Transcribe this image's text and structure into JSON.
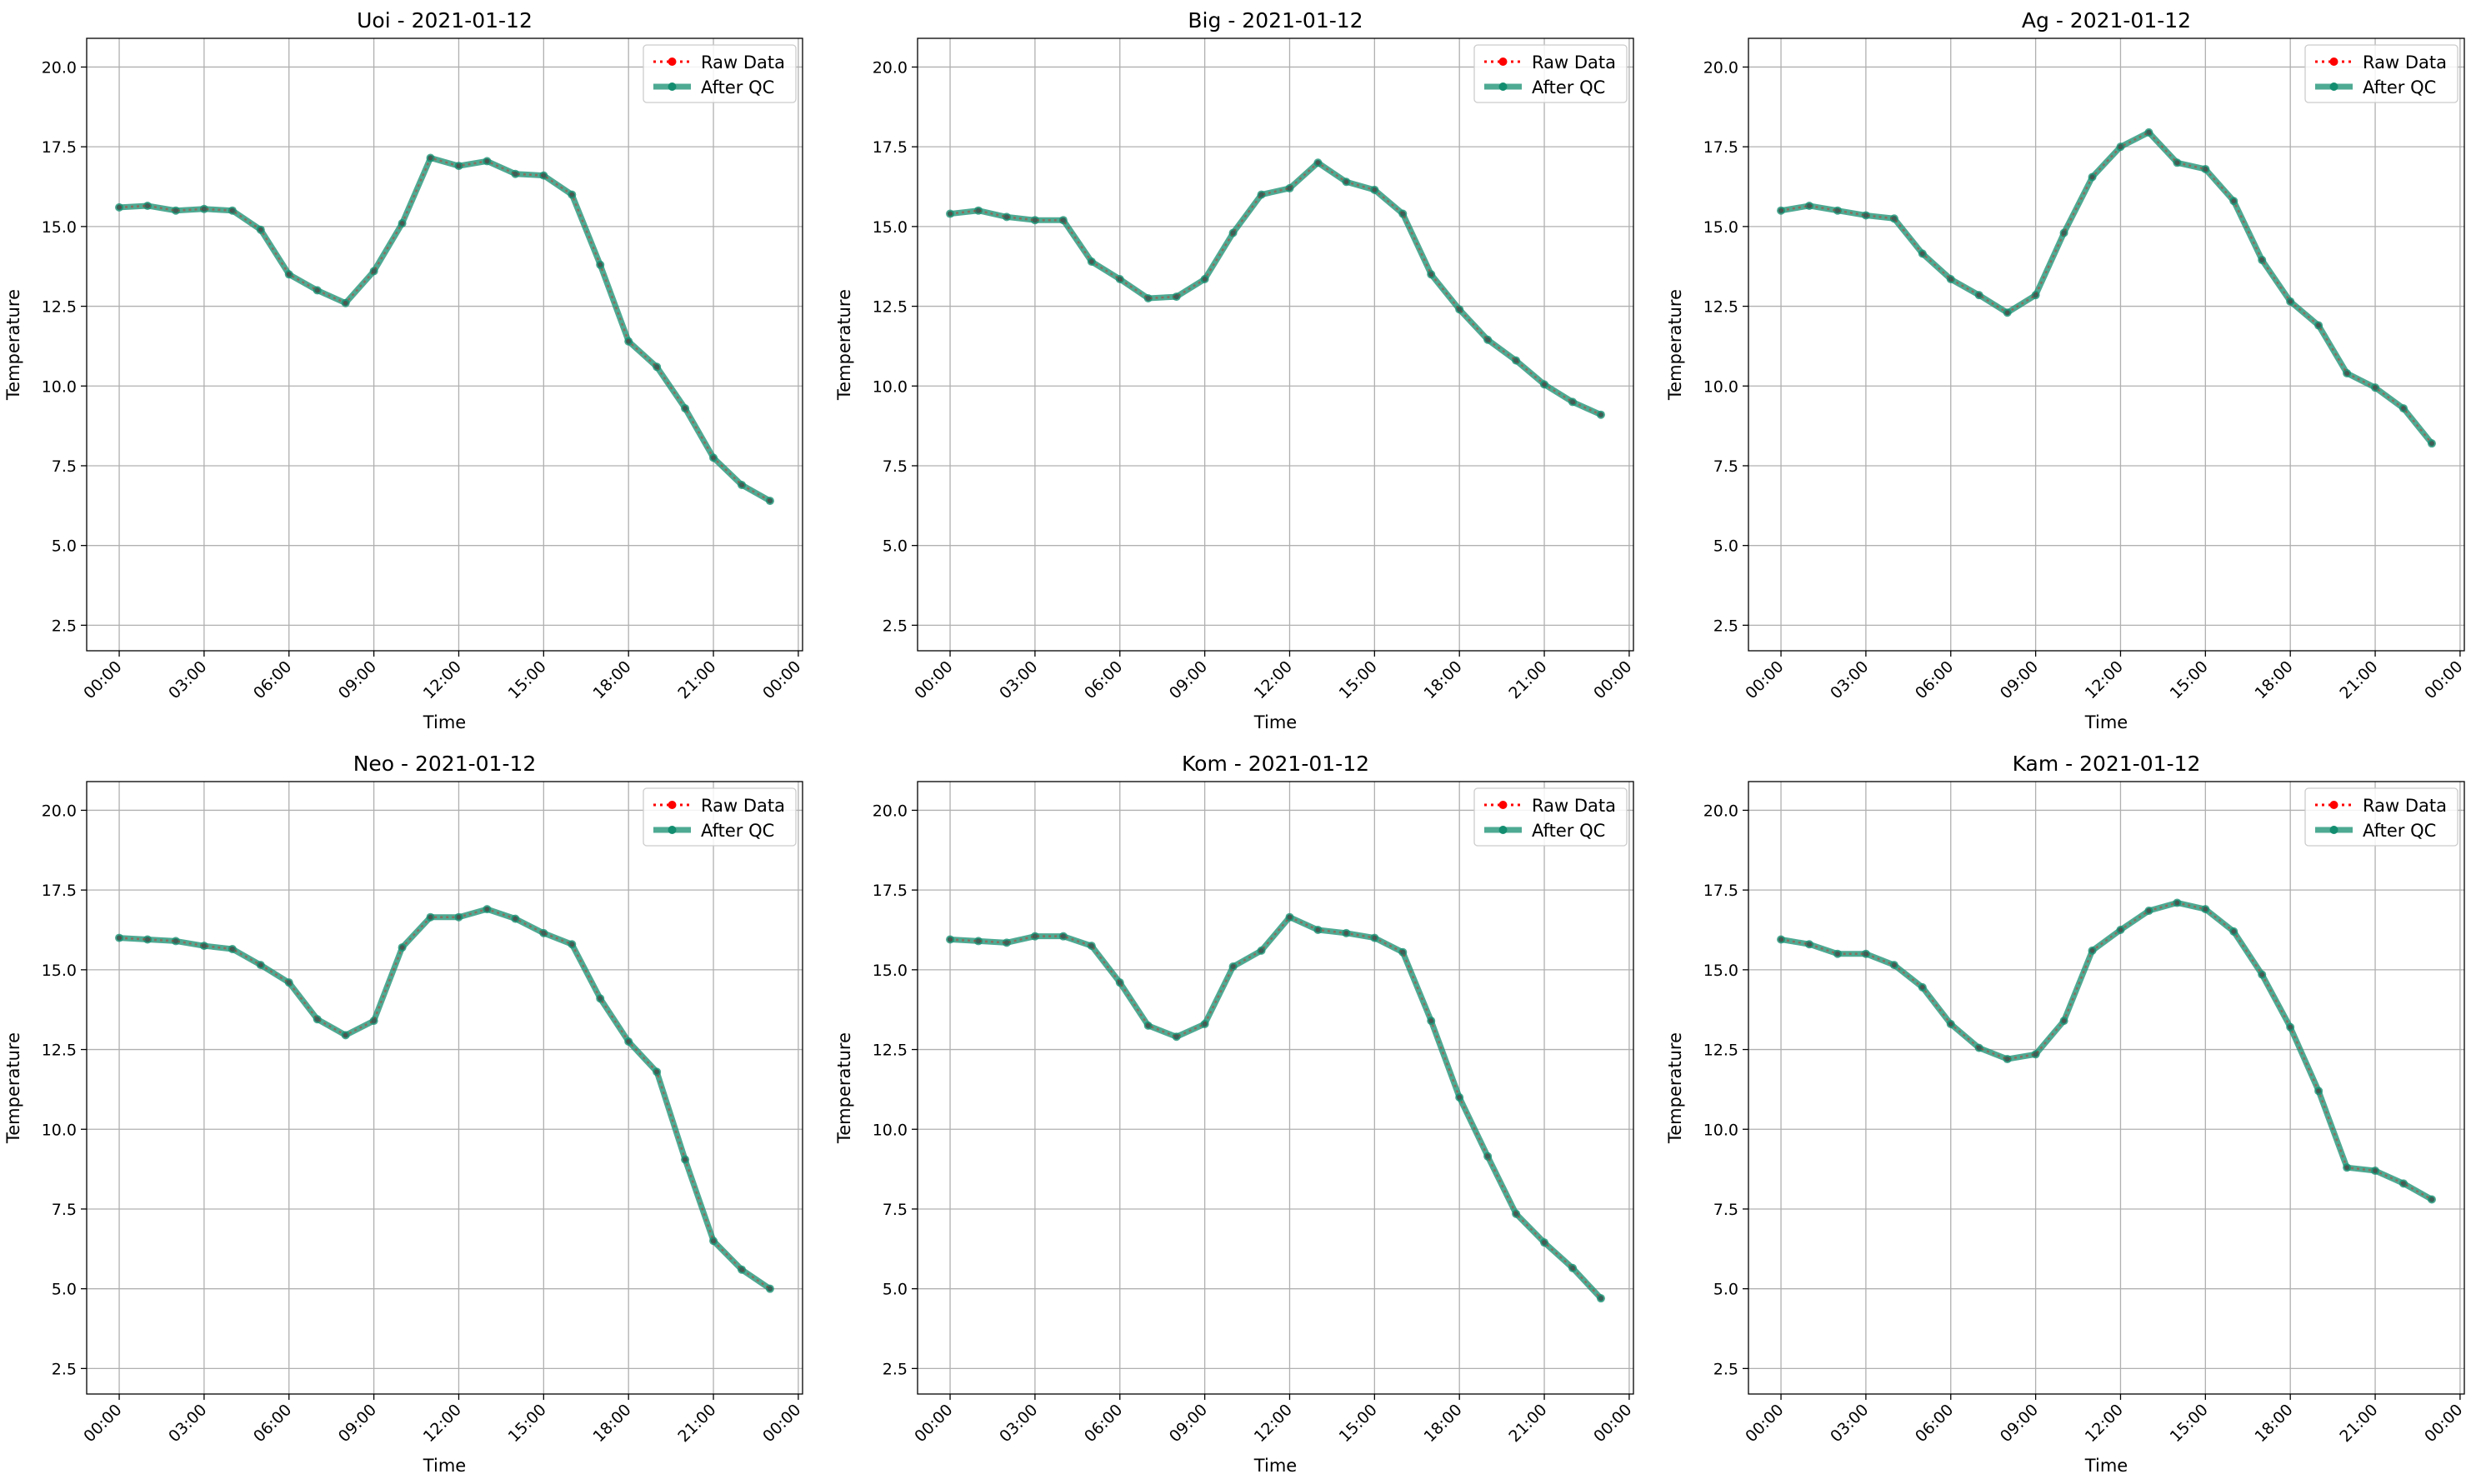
{
  "figure": {
    "x_tick_labels": [
      "00:00",
      "03:00",
      "06:00",
      "09:00",
      "12:00",
      "15:00",
      "18:00",
      "21:00",
      "00:00"
    ],
    "y_tick_labels": [
      "2.5",
      "5.0",
      "7.5",
      "10.0",
      "12.5",
      "15.0",
      "17.5",
      "20.0"
    ],
    "legend": {
      "raw_label": "Raw Data",
      "qc_label": "After QC"
    },
    "colors": {
      "raw": "#ff0000",
      "qc": "#138d6f",
      "grid": "#b0b0b0"
    }
  },
  "chart_data": [
    {
      "type": "line",
      "title": "Uoi - 2021-01-12",
      "xlabel": "Time",
      "ylabel": "Temperature",
      "xlim": [
        -1.15,
        24.15
      ],
      "ylim": [
        1.7,
        20.9
      ],
      "grid": true,
      "legend_position": "top-right",
      "x": [
        "00:00",
        "01:00",
        "02:00",
        "03:00",
        "04:00",
        "05:00",
        "06:00",
        "07:00",
        "08:00",
        "09:00",
        "10:00",
        "11:00",
        "12:00",
        "13:00",
        "14:00",
        "15:00",
        "16:00",
        "17:00",
        "18:00",
        "19:00",
        "20:00",
        "21:00",
        "22:00",
        "23:00"
      ],
      "series": [
        {
          "name": "Raw Data",
          "values": [
            15.6,
            15.65,
            15.5,
            15.55,
            15.5,
            14.9,
            13.5,
            13.0,
            12.6,
            13.6,
            15.1,
            17.15,
            16.9,
            17.05,
            16.65,
            16.6,
            16.0,
            13.8,
            11.4,
            10.6,
            9.3,
            7.75,
            6.9,
            6.4
          ]
        },
        {
          "name": "After QC",
          "values": [
            15.6,
            15.65,
            15.5,
            15.55,
            15.5,
            14.9,
            13.5,
            13.0,
            12.6,
            13.6,
            15.1,
            17.15,
            16.9,
            17.05,
            16.65,
            16.6,
            16.0,
            13.8,
            11.4,
            10.6,
            9.3,
            7.75,
            6.9,
            6.4
          ]
        }
      ]
    },
    {
      "type": "line",
      "title": "Big - 2021-01-12",
      "xlabel": "Time",
      "ylabel": "Temperature",
      "xlim": [
        -1.15,
        24.15
      ],
      "ylim": [
        1.7,
        20.9
      ],
      "grid": true,
      "legend_position": "top-right",
      "x": [
        "00:00",
        "01:00",
        "02:00",
        "03:00",
        "04:00",
        "05:00",
        "06:00",
        "07:00",
        "08:00",
        "09:00",
        "10:00",
        "11:00",
        "12:00",
        "13:00",
        "14:00",
        "15:00",
        "16:00",
        "17:00",
        "18:00",
        "19:00",
        "20:00",
        "21:00",
        "22:00",
        "23:00"
      ],
      "series": [
        {
          "name": "Raw Data",
          "values": [
            15.4,
            15.5,
            15.3,
            15.2,
            15.2,
            13.9,
            13.35,
            12.75,
            12.8,
            13.35,
            14.8,
            16.0,
            16.2,
            17.0,
            16.4,
            16.15,
            15.4,
            13.5,
            12.4,
            11.45,
            10.8,
            10.05,
            9.5,
            9.1
          ]
        },
        {
          "name": "After QC",
          "values": [
            15.4,
            15.5,
            15.3,
            15.2,
            15.2,
            13.9,
            13.35,
            12.75,
            12.8,
            13.35,
            14.8,
            16.0,
            16.2,
            17.0,
            16.4,
            16.15,
            15.4,
            13.5,
            12.4,
            11.45,
            10.8,
            10.05,
            9.5,
            9.1
          ]
        }
      ]
    },
    {
      "type": "line",
      "title": "Ag - 2021-01-12",
      "xlabel": "Time",
      "ylabel": "Temperature",
      "xlim": [
        -1.15,
        24.15
      ],
      "ylim": [
        1.7,
        20.9
      ],
      "grid": true,
      "legend_position": "top-right",
      "x": [
        "00:00",
        "01:00",
        "02:00",
        "03:00",
        "04:00",
        "05:00",
        "06:00",
        "07:00",
        "08:00",
        "09:00",
        "10:00",
        "11:00",
        "12:00",
        "13:00",
        "14:00",
        "15:00",
        "16:00",
        "17:00",
        "18:00",
        "19:00",
        "20:00",
        "21:00",
        "22:00",
        "23:00"
      ],
      "series": [
        {
          "name": "Raw Data",
          "values": [
            15.5,
            15.65,
            15.5,
            15.35,
            15.25,
            14.15,
            13.35,
            12.85,
            12.3,
            12.85,
            14.8,
            16.55,
            17.5,
            17.95,
            17.0,
            16.8,
            15.8,
            13.95,
            12.65,
            11.9,
            10.4,
            9.95,
            9.3,
            8.2
          ]
        },
        {
          "name": "After QC",
          "values": [
            15.5,
            15.65,
            15.5,
            15.35,
            15.25,
            14.15,
            13.35,
            12.85,
            12.3,
            12.85,
            14.8,
            16.55,
            17.5,
            17.95,
            17.0,
            16.8,
            15.8,
            13.95,
            12.65,
            11.9,
            10.4,
            9.95,
            9.3,
            8.2
          ]
        }
      ]
    },
    {
      "type": "line",
      "title": "Neo - 2021-01-12",
      "xlabel": "Time",
      "ylabel": "Temperature",
      "xlim": [
        -1.15,
        24.15
      ],
      "ylim": [
        1.7,
        20.9
      ],
      "grid": true,
      "legend_position": "top-right",
      "x": [
        "00:00",
        "01:00",
        "02:00",
        "03:00",
        "04:00",
        "05:00",
        "06:00",
        "07:00",
        "08:00",
        "09:00",
        "10:00",
        "11:00",
        "12:00",
        "13:00",
        "14:00",
        "15:00",
        "16:00",
        "17:00",
        "18:00",
        "19:00",
        "20:00",
        "21:00",
        "22:00",
        "23:00"
      ],
      "series": [
        {
          "name": "Raw Data",
          "values": [
            16.0,
            15.95,
            15.9,
            15.75,
            15.65,
            15.15,
            14.6,
            13.45,
            12.95,
            13.4,
            15.7,
            16.65,
            16.65,
            16.9,
            16.6,
            16.15,
            15.8,
            14.1,
            12.75,
            11.8,
            9.05,
            6.5,
            5.6,
            5.0
          ]
        },
        {
          "name": "After QC",
          "values": [
            16.0,
            15.95,
            15.9,
            15.75,
            15.65,
            15.15,
            14.6,
            13.45,
            12.95,
            13.4,
            15.7,
            16.65,
            16.65,
            16.9,
            16.6,
            16.15,
            15.8,
            14.1,
            12.75,
            11.8,
            9.05,
            6.5,
            5.6,
            5.0
          ]
        }
      ]
    },
    {
      "type": "line",
      "title": "Kom - 2021-01-12",
      "xlabel": "Time",
      "ylabel": "Temperature",
      "xlim": [
        -1.15,
        24.15
      ],
      "ylim": [
        1.7,
        20.9
      ],
      "grid": true,
      "legend_position": "top-right",
      "x": [
        "00:00",
        "01:00",
        "02:00",
        "03:00",
        "04:00",
        "05:00",
        "06:00",
        "07:00",
        "08:00",
        "09:00",
        "10:00",
        "11:00",
        "12:00",
        "13:00",
        "14:00",
        "15:00",
        "16:00",
        "17:00",
        "18:00",
        "19:00",
        "20:00",
        "21:00",
        "22:00",
        "23:00"
      ],
      "series": [
        {
          "name": "Raw Data",
          "values": [
            15.95,
            15.9,
            15.85,
            16.05,
            16.05,
            15.75,
            14.6,
            13.25,
            12.9,
            13.3,
            15.1,
            15.6,
            16.65,
            16.25,
            16.15,
            16.0,
            15.55,
            13.4,
            11.0,
            9.15,
            7.35,
            6.45,
            5.65,
            4.7
          ]
        },
        {
          "name": "After QC",
          "values": [
            15.95,
            15.9,
            15.85,
            16.05,
            16.05,
            15.75,
            14.6,
            13.25,
            12.9,
            13.3,
            15.1,
            15.6,
            16.65,
            16.25,
            16.15,
            16.0,
            15.55,
            13.4,
            11.0,
            9.15,
            7.35,
            6.45,
            5.65,
            4.7
          ]
        }
      ]
    },
    {
      "type": "line",
      "title": "Kam - 2021-01-12",
      "xlabel": "Time",
      "ylabel": "Temperature",
      "xlim": [
        -1.15,
        24.15
      ],
      "ylim": [
        1.7,
        20.9
      ],
      "grid": true,
      "legend_position": "top-right",
      "x": [
        "00:00",
        "01:00",
        "02:00",
        "03:00",
        "04:00",
        "05:00",
        "06:00",
        "07:00",
        "08:00",
        "09:00",
        "10:00",
        "11:00",
        "12:00",
        "13:00",
        "14:00",
        "15:00",
        "16:00",
        "17:00",
        "18:00",
        "19:00",
        "20:00",
        "21:00",
        "22:00",
        "23:00"
      ],
      "series": [
        {
          "name": "Raw Data",
          "values": [
            15.95,
            15.8,
            15.5,
            15.5,
            15.15,
            14.45,
            13.3,
            12.55,
            12.2,
            12.35,
            13.4,
            15.6,
            16.25,
            16.85,
            17.1,
            16.9,
            16.2,
            14.85,
            13.2,
            11.2,
            8.8,
            8.7,
            8.3,
            7.8
          ]
        },
        {
          "name": "After QC",
          "values": [
            15.95,
            15.8,
            15.5,
            15.5,
            15.15,
            14.45,
            13.3,
            12.55,
            12.2,
            12.35,
            13.4,
            15.6,
            16.25,
            16.85,
            17.1,
            16.9,
            16.2,
            14.85,
            13.2,
            11.2,
            8.8,
            8.7,
            8.3,
            7.8
          ]
        }
      ]
    }
  ]
}
